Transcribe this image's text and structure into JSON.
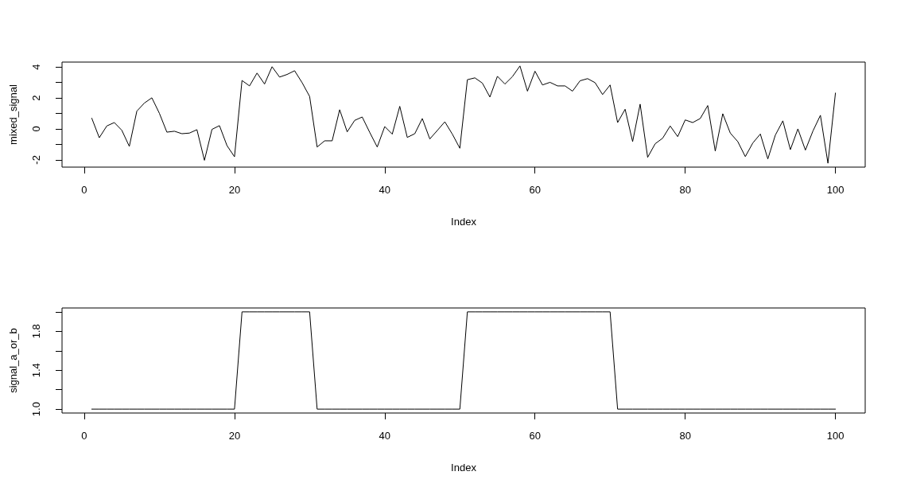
{
  "chart_data": [
    {
      "type": "line",
      "color": "#000000",
      "xlabel": "Index",
      "ylabel": "mixed_signal",
      "x": [
        1,
        2,
        3,
        4,
        5,
        6,
        7,
        8,
        9,
        10,
        11,
        12,
        13,
        14,
        15,
        16,
        17,
        18,
        19,
        20,
        21,
        22,
        23,
        24,
        25,
        26,
        27,
        28,
        29,
        30,
        31,
        32,
        33,
        34,
        35,
        36,
        37,
        38,
        39,
        40,
        41,
        42,
        43,
        44,
        45,
        46,
        47,
        48,
        49,
        50,
        51,
        52,
        53,
        54,
        55,
        56,
        57,
        58,
        59,
        60,
        61,
        62,
        63,
        64,
        65,
        66,
        67,
        68,
        69,
        70,
        71,
        72,
        73,
        74,
        75,
        76,
        77,
        78,
        79,
        80,
        81,
        82,
        83,
        84,
        85,
        86,
        87,
        88,
        89,
        90,
        91,
        92,
        93,
        94,
        95,
        96,
        97,
        98,
        99,
        100
      ],
      "values": [
        0.69,
        -0.57,
        0.19,
        0.41,
        -0.09,
        -1.13,
        1.15,
        1.67,
        2.01,
        1.01,
        -0.21,
        -0.15,
        -0.31,
        -0.27,
        -0.05,
        -2.03,
        -0.03,
        0.21,
        -1.08,
        -1.8,
        3.13,
        2.78,
        3.61,
        2.9,
        4.02,
        3.35,
        3.52,
        3.76,
        2.99,
        2.1,
        -1.17,
        -0.77,
        -0.77,
        1.24,
        -0.19,
        0.55,
        0.77,
        -0.22,
        -1.17,
        0.15,
        -0.34,
        1.46,
        -0.55,
        -0.31,
        0.67,
        -0.65,
        -0.1,
        0.46,
        -0.34,
        -1.25,
        3.18,
        3.3,
        2.96,
        2.06,
        3.4,
        2.9,
        3.38,
        4.07,
        2.44,
        3.73,
        2.84,
        3.01,
        2.78,
        2.78,
        2.44,
        3.11,
        3.25,
        2.99,
        2.22,
        2.84,
        0.41,
        1.27,
        -0.82,
        1.6,
        -1.84,
        -0.96,
        -0.6,
        0.19,
        -0.5,
        0.58,
        0.41,
        0.67,
        1.51,
        -1.43,
        0.98,
        -0.27,
        -0.82,
        -1.79,
        -0.91,
        -0.33,
        -1.94,
        -0.4,
        0.52,
        -1.34,
        0,
        -1.37,
        -0.14,
        0.88,
        -2.22,
        2.32
      ],
      "xlim": [
        -2.96,
        103.96
      ],
      "xticks": [
        0,
        20,
        40,
        60,
        80,
        100
      ],
      "ylim": [
        -2.47,
        4.32
      ],
      "yticks": [
        -2,
        {
          "value": -1,
          "label": null
        },
        0,
        {
          "value": 1,
          "label": null
        },
        2,
        {
          "value": 3,
          "label": null
        },
        4
      ]
    },
    {
      "type": "line",
      "color": "#000000",
      "xlabel": "Index",
      "ylabel": "signal_a_or_b",
      "x": [
        1,
        2,
        3,
        4,
        5,
        6,
        7,
        8,
        9,
        10,
        11,
        12,
        13,
        14,
        15,
        16,
        17,
        18,
        19,
        20,
        21,
        22,
        23,
        24,
        25,
        26,
        27,
        28,
        29,
        30,
        31,
        32,
        33,
        34,
        35,
        36,
        37,
        38,
        39,
        40,
        41,
        42,
        43,
        44,
        45,
        46,
        47,
        48,
        49,
        50,
        51,
        52,
        53,
        54,
        55,
        56,
        57,
        58,
        59,
        60,
        61,
        62,
        63,
        64,
        65,
        66,
        67,
        68,
        69,
        70,
        71,
        72,
        73,
        74,
        75,
        76,
        77,
        78,
        79,
        80,
        81,
        82,
        83,
        84,
        85,
        86,
        87,
        88,
        89,
        90,
        91,
        92,
        93,
        94,
        95,
        96,
        97,
        98,
        99,
        100
      ],
      "values": [
        1,
        1,
        1,
        1,
        1,
        1,
        1,
        1,
        1,
        1,
        1,
        1,
        1,
        1,
        1,
        1,
        1,
        1,
        1,
        1,
        2,
        2,
        2,
        2,
        2,
        2,
        2,
        2,
        2,
        2,
        1,
        1,
        1,
        1,
        1,
        1,
        1,
        1,
        1,
        1,
        1,
        1,
        1,
        1,
        1,
        1,
        1,
        1,
        1,
        1,
        2,
        2,
        2,
        2,
        2,
        2,
        2,
        2,
        2,
        2,
        2,
        2,
        2,
        2,
        2,
        2,
        2,
        2,
        2,
        2,
        1,
        1,
        1,
        1,
        1,
        1,
        1,
        1,
        1,
        1,
        1,
        1,
        1,
        1,
        1,
        1,
        1,
        1,
        1,
        1,
        1,
        1,
        1,
        1,
        1,
        1,
        1,
        1,
        1,
        1
      ],
      "xlim": [
        -2.96,
        103.96
      ],
      "xticks": [
        0,
        20,
        40,
        60,
        80,
        100
      ],
      "ylim": [
        0.96,
        2.04
      ],
      "yticks": [
        {
          "value": 1,
          "label": "1.0"
        },
        {
          "value": 1.2,
          "label": null
        },
        {
          "value": 1.4,
          "label": "1.4"
        },
        {
          "value": 1.6,
          "label": null
        },
        {
          "value": 1.8,
          "label": "1.8"
        },
        {
          "value": 2,
          "label": null
        }
      ]
    }
  ]
}
